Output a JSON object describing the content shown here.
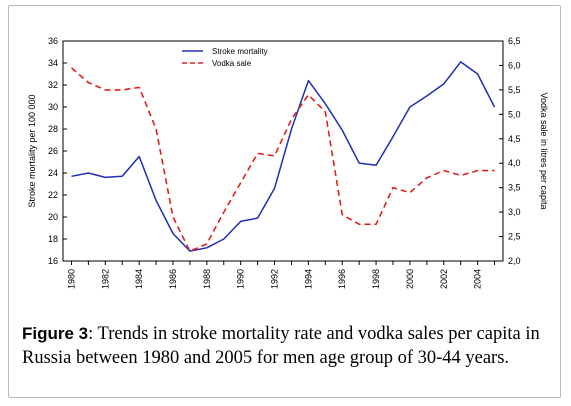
{
  "figure": {
    "label": "Figure 3",
    "caption": ": Trends in stroke mortality rate and vodka sales per capita in Russia between 1980 and 2005 for men age group of 30-44 years."
  },
  "chart_data": {
    "type": "line",
    "title": "",
    "x": [
      1980,
      1981,
      1982,
      1983,
      1984,
      1985,
      1986,
      1987,
      1988,
      1989,
      1990,
      1991,
      1992,
      1993,
      1994,
      1995,
      1996,
      1997,
      1998,
      1999,
      2000,
      2001,
      2002,
      2003,
      2004,
      2005
    ],
    "xticks": [
      "1980",
      "1982",
      "1984",
      "1986",
      "1988",
      "1990",
      "1992",
      "1994",
      "1996",
      "1998",
      "2000",
      "2002",
      "2004"
    ],
    "xlim": [
      1979.5,
      2005.5
    ],
    "ylabel": "Stroke mortality per 100 000",
    "y2label": "Vodka sale in litres per capita",
    "ylim": [
      16,
      36
    ],
    "y2lim": [
      2.0,
      6.5
    ],
    "yticks": [
      "16",
      "18",
      "20",
      "22",
      "24",
      "26",
      "28",
      "30",
      "32",
      "34",
      "36"
    ],
    "y2ticks": [
      "2,0",
      "2,5",
      "3,0",
      "3,5",
      "4,0",
      "4,5",
      "5,0",
      "5,5",
      "6,0",
      "6,5"
    ],
    "legend_position": "top-center",
    "series": [
      {
        "name": "Stroke mortality",
        "axis": "left",
        "color": "#1f2fb0",
        "style": "solid",
        "values": [
          23.7,
          24.0,
          23.6,
          23.7,
          25.5,
          21.5,
          18.5,
          16.9,
          17.2,
          18.0,
          19.6,
          19.9,
          22.6,
          28.0,
          32.4,
          30.3,
          27.9,
          24.9,
          24.7,
          27.3,
          30.0,
          31.0,
          32.1,
          34.1,
          33.0,
          30.0
        ]
      },
      {
        "name": "Vodka sale",
        "axis": "right",
        "color": "#e0201e",
        "style": "dashed",
        "values": [
          5.95,
          5.65,
          5.5,
          5.5,
          5.55,
          4.7,
          2.9,
          2.2,
          2.35,
          3.0,
          3.6,
          4.2,
          4.15,
          4.9,
          5.4,
          5.05,
          2.95,
          2.75,
          2.75,
          3.5,
          3.4,
          3.7,
          3.85,
          3.75,
          3.85,
          3.85
        ]
      }
    ]
  }
}
